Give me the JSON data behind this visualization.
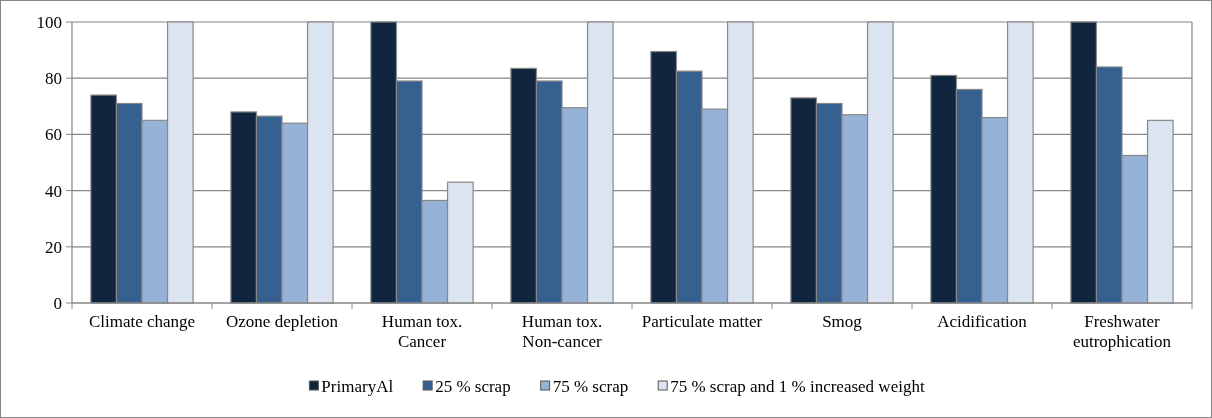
{
  "chart_data": {
    "type": "bar",
    "categories": [
      "Climate change",
      "Ozone depletion",
      "Human tox. Cancer",
      "Human tox. Non-cancer",
      "Particulate matter",
      "Smog",
      "Acidification",
      "Freshwater eutrophication"
    ],
    "series": [
      {
        "name": "PrimaryAl",
        "color": "#12253f",
        "values": [
          74,
          68,
          100,
          83.5,
          89.5,
          73,
          81,
          100
        ]
      },
      {
        "name": "25 % scrap",
        "color": "#36608f",
        "values": [
          71,
          66.5,
          79,
          79,
          82.5,
          71,
          76,
          84
        ]
      },
      {
        "name": "75 % scrap",
        "color": "#96b3d7",
        "values": [
          65,
          64,
          36.5,
          69.5,
          69,
          67,
          66,
          52.5
        ]
      },
      {
        "name": "75 % scrap and 1 % increased weight",
        "color": "#dbe4f0",
        "values": [
          100,
          100,
          43,
          100,
          100,
          100,
          100,
          65
        ]
      }
    ],
    "ylim": [
      0,
      100
    ],
    "yticks": [
      0,
      20,
      40,
      60,
      80,
      100
    ],
    "grid": "y",
    "legend": "bottom"
  }
}
